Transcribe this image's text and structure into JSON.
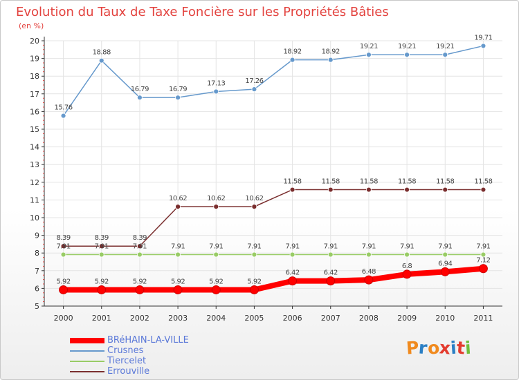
{
  "title": "Evolution du Taux de Taxe Foncière sur les Propriétés Bâties",
  "subtitle": "(en %)",
  "logo": {
    "letters": [
      "P",
      "r",
      "o",
      "x",
      "i",
      "t",
      "i"
    ],
    "colors": [
      "#f08a1e",
      "#2b7fc4",
      "#f08a1e",
      "#e33b2e",
      "#2b7fc4",
      "#e33b2e",
      "#6fbf3a"
    ]
  },
  "chart_data": {
    "type": "line",
    "x": [
      "2000",
      "2001",
      "2002",
      "2003",
      "2004",
      "2005",
      "2006",
      "2007",
      "2008",
      "2009",
      "2010",
      "2011"
    ],
    "ylim": [
      5,
      20
    ],
    "yticks": [
      "5",
      "6",
      "7",
      "8",
      "9",
      "10",
      "11",
      "12",
      "13",
      "14",
      "15",
      "16",
      "17",
      "18",
      "19",
      "20"
    ],
    "grid": true,
    "legend_placement": "bottom-left",
    "series": [
      {
        "name": "BRéHAIN-LA-VILLE",
        "color": "#ff0000",
        "values": [
          5.92,
          5.92,
          5.92,
          5.92,
          5.92,
          5.92,
          6.42,
          6.42,
          6.48,
          6.8,
          6.94,
          7.12
        ],
        "labels": [
          "5.92",
          "5.92",
          "5.92",
          "5.92",
          "5.92",
          "5.92",
          "6.42",
          "6.42",
          "6.48",
          "6.8",
          "6.94",
          "7.12"
        ]
      },
      {
        "name": "Crusnes",
        "color": "#6699cc",
        "values": [
          15.76,
          18.88,
          16.79,
          16.79,
          17.13,
          17.26,
          18.92,
          18.92,
          19.21,
          19.21,
          19.21,
          19.71
        ],
        "labels": [
          "15.76",
          "18.88",
          "16.79",
          "16.79",
          "17.13",
          "17.26",
          "18.92",
          "18.92",
          "19.21",
          "19.21",
          "19.21",
          "19.71"
        ]
      },
      {
        "name": "Tiercelet",
        "color": "#99cc66",
        "values": [
          7.91,
          7.91,
          7.91,
          7.91,
          7.91,
          7.91,
          7.91,
          7.91,
          7.91,
          7.91,
          7.91,
          7.91
        ],
        "labels": [
          "7.91",
          "7.91",
          "7.91",
          "7.91",
          "7.91",
          "7.91",
          "7.91",
          "7.91",
          "7.91",
          "7.91",
          "7.91",
          "7.91"
        ]
      },
      {
        "name": "Errouville",
        "color": "#7a2e2e",
        "values": [
          8.39,
          8.39,
          8.39,
          10.62,
          10.62,
          10.62,
          11.58,
          11.58,
          11.58,
          11.58,
          11.58,
          11.58
        ],
        "labels": [
          "8.39",
          "8.39",
          "8.39",
          "10.62",
          "10.62",
          "10.62",
          "11.58",
          "11.58",
          "11.58",
          "11.58",
          "11.58",
          "11.58"
        ]
      }
    ]
  }
}
